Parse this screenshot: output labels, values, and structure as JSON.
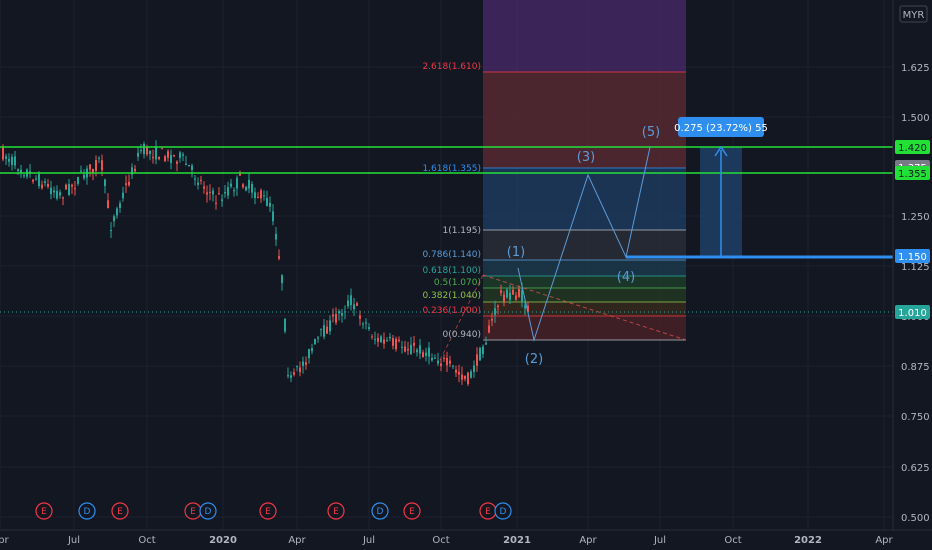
{
  "header": {
    "currency": "MYR"
  },
  "chart_data": {
    "type": "candlestick",
    "y_ticks": [
      "1.625",
      "1.500",
      "1.375",
      "1.250",
      "1.125",
      "1.000",
      "0.875",
      "0.750",
      "0.625",
      "0.500"
    ],
    "x_ticks": [
      "Apr",
      "Jul",
      "Oct",
      "2020",
      "Apr",
      "Jul",
      "Oct",
      "2021",
      "Apr",
      "Jul",
      "Oct",
      "2022",
      "Apr"
    ],
    "price_tags": [
      {
        "label": "1.420",
        "color": "#22e036",
        "text_color": "#131722"
      },
      {
        "label": "1.375",
        "color": "#787b86",
        "text_color": "#ffffff"
      },
      {
        "label": "1.355",
        "color": "#22e036",
        "text_color": "#131722"
      },
      {
        "label": "1.150",
        "color": "#2e8ff0",
        "text_color": "#ffffff"
      },
      {
        "label": "1.010",
        "color": "#26a69a",
        "text_color": "#ffffff"
      }
    ],
    "fib_levels": [
      {
        "label": "2.618(1.610)",
        "color": "#f23645"
      },
      {
        "label": "1.618(1.355)",
        "color": "#2e8ff0"
      },
      {
        "label": "1(1.195)",
        "color": "#b2b5be"
      },
      {
        "label": "0.786(1.140)",
        "color": "#5b9bd5"
      },
      {
        "label": "0.618(1.100)",
        "color": "#26a69a"
      },
      {
        "label": "0.5(1.070)",
        "color": "#4caf50"
      },
      {
        "label": "0.382(1.040)",
        "color": "#8bc34a"
      },
      {
        "label": "0.236(1.000)",
        "color": "#f23645"
      },
      {
        "label": "0(0.940)",
        "color": "#b2b5be"
      }
    ],
    "waves": [
      "(1)",
      "(2)",
      "(3)",
      "(4)",
      "(5)"
    ],
    "measure_label": "0.275 (23.72%) 55",
    "events": [
      "E",
      "D",
      "E",
      "E",
      "D",
      "E",
      "E",
      "D",
      "E",
      "E",
      "D"
    ],
    "colors": {
      "up": "#26a69a",
      "down": "#ef5350",
      "green_line": "#22e036",
      "blue": "#2e8ff0",
      "purple": "#4a2a6b"
    }
  }
}
